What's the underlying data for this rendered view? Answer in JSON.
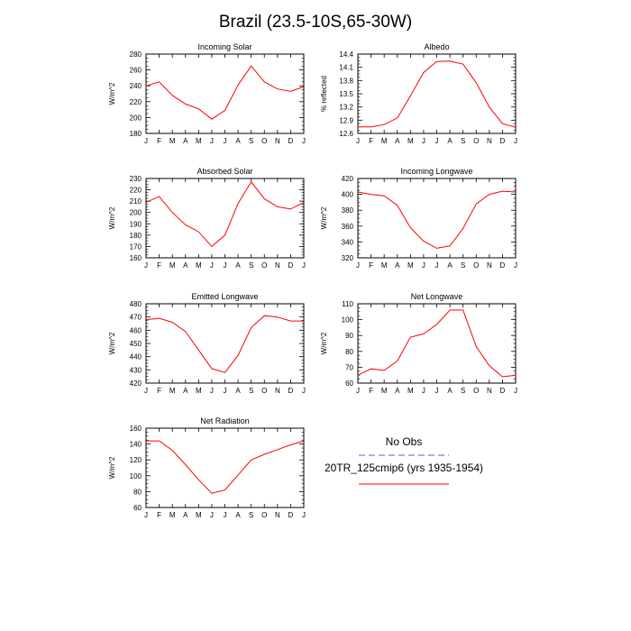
{
  "title": "Brazil (23.5-10S,65-30W)",
  "legend": {
    "entries": [
      {
        "label": "No Obs",
        "color": "#7a7aff",
        "style": "dashed"
      },
      {
        "label": "20TR_125cmip6 (yrs 1935-1954)",
        "color": "#ff0000",
        "style": "solid"
      }
    ]
  },
  "chart_data": [
    {
      "type": "line",
      "title": "Incoming Solar",
      "ylabel": "W/m^2",
      "xlabel": "",
      "categories": [
        "J",
        "F",
        "M",
        "A",
        "M",
        "J",
        "J",
        "A",
        "S",
        "O",
        "N",
        "D",
        "J"
      ],
      "ylim": [
        180,
        280
      ],
      "yticks": [
        180,
        200,
        220,
        240,
        260,
        280
      ],
      "series": [
        {
          "name": "20TR_125cmip6 (yrs 1935-1954)",
          "color": "#ff0000",
          "values": [
            240,
            245,
            228,
            217,
            211,
            198,
            209,
            241,
            265,
            245,
            236,
            233,
            239
          ]
        }
      ]
    },
    {
      "type": "line",
      "title": "Albedo",
      "ylabel": "% reflected",
      "xlabel": "",
      "categories": [
        "J",
        "F",
        "M",
        "A",
        "M",
        "J",
        "J",
        "A",
        "S",
        "O",
        "N",
        "D",
        "J"
      ],
      "ylim": [
        12.6,
        14.4
      ],
      "yticks": [
        12.6,
        12.9,
        13.2,
        13.5,
        13.8,
        14.1,
        14.4
      ],
      "series": [
        {
          "name": "20TR_125cmip6 (yrs 1935-1954)",
          "color": "#ff0000",
          "values": [
            12.75,
            12.75,
            12.8,
            12.95,
            13.45,
            13.98,
            14.23,
            14.24,
            14.17,
            13.75,
            13.2,
            12.82,
            12.74
          ]
        }
      ]
    },
    {
      "type": "line",
      "title": "Absorbed Solar",
      "ylabel": "W/m^2",
      "xlabel": "",
      "categories": [
        "J",
        "F",
        "M",
        "A",
        "M",
        "J",
        "J",
        "A",
        "S",
        "O",
        "N",
        "D",
        "J"
      ],
      "ylim": [
        160,
        230
      ],
      "yticks": [
        160,
        170,
        180,
        190,
        200,
        210,
        220,
        230
      ],
      "series": [
        {
          "name": "20TR_125cmip6 (yrs 1935-1954)",
          "color": "#ff0000",
          "values": [
            209,
            214,
            200,
            189,
            183,
            170,
            180,
            208,
            227,
            212,
            205,
            203,
            209
          ]
        }
      ]
    },
    {
      "type": "line",
      "title": "Incoming Longwave",
      "ylabel": "W/m^2",
      "xlabel": "",
      "categories": [
        "J",
        "F",
        "M",
        "A",
        "M",
        "J",
        "J",
        "A",
        "S",
        "O",
        "N",
        "D",
        "J"
      ],
      "ylim": [
        320,
        420
      ],
      "yticks": [
        320,
        340,
        360,
        380,
        400,
        420
      ],
      "series": [
        {
          "name": "20TR_125cmip6 (yrs 1935-1954)",
          "color": "#ff0000",
          "values": [
            403,
            400,
            398,
            386,
            358,
            341,
            332,
            335,
            357,
            388,
            400,
            404,
            403
          ]
        }
      ]
    },
    {
      "type": "line",
      "title": "Emitted Longwave",
      "ylabel": "W/m^2",
      "xlabel": "",
      "categories": [
        "J",
        "F",
        "M",
        "A",
        "M",
        "J",
        "J",
        "A",
        "S",
        "O",
        "N",
        "D",
        "J"
      ],
      "ylim": [
        420,
        480
      ],
      "yticks": [
        420,
        430,
        440,
        450,
        460,
        470,
        480
      ],
      "series": [
        {
          "name": "20TR_125cmip6 (yrs 1935-1954)",
          "color": "#ff0000",
          "values": [
            468,
            469,
            466,
            459,
            445,
            431,
            428,
            441,
            462,
            471,
            470,
            467,
            467
          ]
        }
      ]
    },
    {
      "type": "line",
      "title": "Net Longwave",
      "ylabel": "W/m^2",
      "xlabel": "",
      "categories": [
        "J",
        "F",
        "M",
        "A",
        "M",
        "J",
        "J",
        "A",
        "S",
        "O",
        "N",
        "D",
        "J"
      ],
      "ylim": [
        60,
        110
      ],
      "yticks": [
        60,
        70,
        80,
        90,
        100,
        110
      ],
      "series": [
        {
          "name": "20TR_125cmip6 (yrs 1935-1954)",
          "color": "#ff0000",
          "values": [
            65,
            69,
            68,
            74,
            89,
            91,
            97,
            106,
            106,
            83,
            71,
            64,
            65
          ]
        }
      ]
    },
    {
      "type": "line",
      "title": "Net Radiation",
      "ylabel": "W/m^2",
      "xlabel": "",
      "categories": [
        "J",
        "F",
        "M",
        "A",
        "M",
        "J",
        "J",
        "A",
        "S",
        "O",
        "N",
        "D",
        "J"
      ],
      "ylim": [
        60,
        160
      ],
      "yticks": [
        60,
        80,
        100,
        120,
        140,
        160
      ],
      "series": [
        {
          "name": "20TR_125cmip6 (yrs 1935-1954)",
          "color": "#ff0000",
          "values": [
            144,
            144,
            132,
            114,
            95,
            78,
            82,
            101,
            120,
            127,
            133,
            139,
            144
          ]
        }
      ]
    }
  ]
}
